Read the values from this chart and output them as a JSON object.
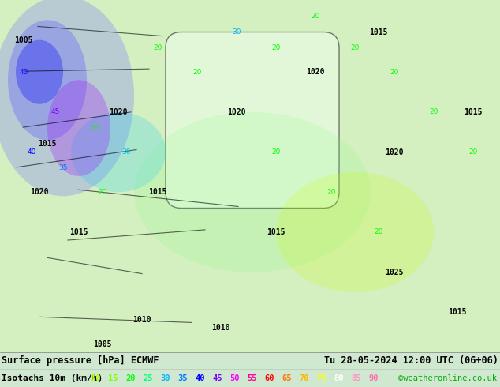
{
  "title_left": "Surface pressure [hPa] ECMWF",
  "title_right": "Tu 28-05-2024 12:00 UTC (06+06)",
  "legend_label": "Isotachs 10m (km/h)",
  "copyright": "©weatheronline.co.uk",
  "isotach_values": [
    10,
    15,
    20,
    25,
    30,
    35,
    40,
    45,
    50,
    55,
    60,
    65,
    70,
    75,
    80,
    85,
    90
  ],
  "isotach_colors": [
    "#ffff00",
    "#c8ff00",
    "#00ff00",
    "#00ffc8",
    "#00c8ff",
    "#0064ff",
    "#0000ff",
    "#6400ff",
    "#c800ff",
    "#ff00c8",
    "#ff0064",
    "#ff0000",
    "#ff6400",
    "#ffc800",
    "#ffff00",
    "#ffffff",
    "#ff69b4"
  ],
  "bg_color": "#ffffff",
  "map_bg": "#e8f4e8",
  "bottom_bar_color": "#e0e0e0",
  "figsize": [
    6.34,
    4.9
  ],
  "dpi": 100
}
